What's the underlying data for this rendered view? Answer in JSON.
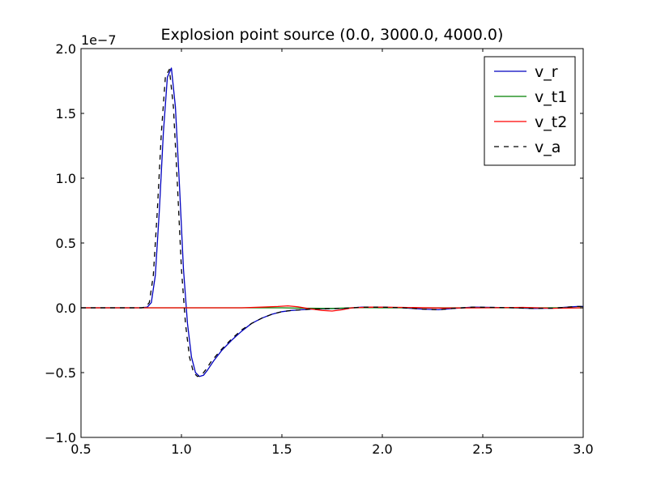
{
  "chart_data": {
    "type": "line",
    "title": "Explosion point source (0.0, 3000.0, 4000.0)",
    "xlabel": "",
    "ylabel": "",
    "xlim": [
      0.5,
      3.0
    ],
    "ylim": [
      -1.0,
      2.0
    ],
    "y_scale_label": "1e−7",
    "x_ticks": [
      0.5,
      1.0,
      1.5,
      2.0,
      2.5,
      3.0
    ],
    "x_tick_labels": [
      "0.5",
      "1.0",
      "1.5",
      "2.0",
      "2.5",
      "3.0"
    ],
    "y_ticks": [
      -1.0,
      -0.5,
      0.0,
      0.5,
      1.0,
      1.5,
      2.0
    ],
    "y_tick_labels": [
      "−1.0",
      "−0.5",
      "0.0",
      "0.5",
      "1.0",
      "1.5",
      "2.0"
    ],
    "grid": false,
    "legend_position": "top-right",
    "series": [
      {
        "name": "v_r",
        "color": "#0000bf",
        "dash": "solid",
        "x": [
          0.5,
          0.8,
          0.83,
          0.85,
          0.87,
          0.89,
          0.91,
          0.93,
          0.95,
          0.97,
          0.99,
          1.01,
          1.03,
          1.05,
          1.07,
          1.09,
          1.11,
          1.13,
          1.16,
          1.2,
          1.25,
          1.3,
          1.35,
          1.4,
          1.45,
          1.5,
          1.55,
          1.6,
          1.65,
          1.7,
          1.75,
          1.8,
          1.9,
          2.0,
          2.1,
          2.2,
          2.28,
          2.35,
          2.45,
          2.55,
          2.65,
          2.75,
          2.85,
          2.92,
          2.97,
          3.0
        ],
        "y": [
          0.0,
          0.0,
          0.005,
          0.04,
          0.25,
          0.75,
          1.35,
          1.78,
          1.85,
          1.55,
          0.95,
          0.3,
          -0.12,
          -0.38,
          -0.5,
          -0.53,
          -0.52,
          -0.48,
          -0.41,
          -0.33,
          -0.25,
          -0.18,
          -0.12,
          -0.08,
          -0.05,
          -0.03,
          -0.02,
          -0.015,
          -0.01,
          -0.008,
          -0.006,
          -0.005,
          0.005,
          0.005,
          0.0,
          -0.01,
          -0.015,
          -0.005,
          0.005,
          0.003,
          0.0,
          -0.005,
          -0.003,
          0.005,
          0.01,
          0.01
        ]
      },
      {
        "name": "v_t1",
        "color": "#008000",
        "dash": "solid",
        "x": [
          0.5,
          1.0,
          1.5,
          1.6,
          1.75,
          1.9,
          2.0,
          2.5,
          3.0
        ],
        "y": [
          0.0,
          0.0,
          0.0,
          -0.003,
          -0.005,
          0.002,
          0.0,
          0.0,
          0.0
        ]
      },
      {
        "name": "v_t2",
        "color": "#ff0000",
        "dash": "solid",
        "x": [
          0.5,
          1.0,
          1.3,
          1.4,
          1.48,
          1.53,
          1.58,
          1.64,
          1.7,
          1.75,
          1.8,
          1.85,
          1.95,
          2.1,
          2.3,
          2.5,
          2.7,
          2.85,
          3.0
        ],
        "y": [
          0.0,
          0.0,
          0.0,
          0.005,
          0.01,
          0.015,
          0.008,
          -0.008,
          -0.02,
          -0.025,
          -0.015,
          0.0,
          0.005,
          0.003,
          -0.002,
          0.0,
          0.003,
          -0.004,
          0.0
        ]
      },
      {
        "name": "v_a",
        "color": "#000000",
        "dash": "dashed",
        "x": [
          0.5,
          0.8,
          0.82,
          0.84,
          0.86,
          0.88,
          0.9,
          0.92,
          0.94,
          0.96,
          0.98,
          1.0,
          1.02,
          1.04,
          1.06,
          1.08,
          1.1,
          1.12,
          1.15,
          1.2,
          1.25,
          1.3,
          1.35,
          1.4,
          1.45,
          1.5,
          1.55,
          1.6,
          1.65,
          1.7,
          1.75,
          1.8,
          1.9,
          2.0,
          2.1,
          2.2,
          2.28,
          2.35,
          2.45,
          2.55,
          2.65,
          2.75,
          2.85,
          2.92,
          2.97,
          3.0
        ],
        "y": [
          0.0,
          0.0,
          0.005,
          0.04,
          0.25,
          0.75,
          1.35,
          1.78,
          1.84,
          1.55,
          0.95,
          0.3,
          -0.12,
          -0.38,
          -0.5,
          -0.53,
          -0.52,
          -0.48,
          -0.41,
          -0.32,
          -0.24,
          -0.17,
          -0.12,
          -0.08,
          -0.05,
          -0.03,
          -0.02,
          -0.015,
          -0.01,
          -0.008,
          -0.006,
          -0.005,
          0.005,
          0.005,
          0.0,
          -0.01,
          -0.015,
          -0.005,
          0.005,
          0.003,
          0.0,
          -0.005,
          -0.003,
          0.005,
          0.01,
          0.01
        ]
      }
    ]
  }
}
